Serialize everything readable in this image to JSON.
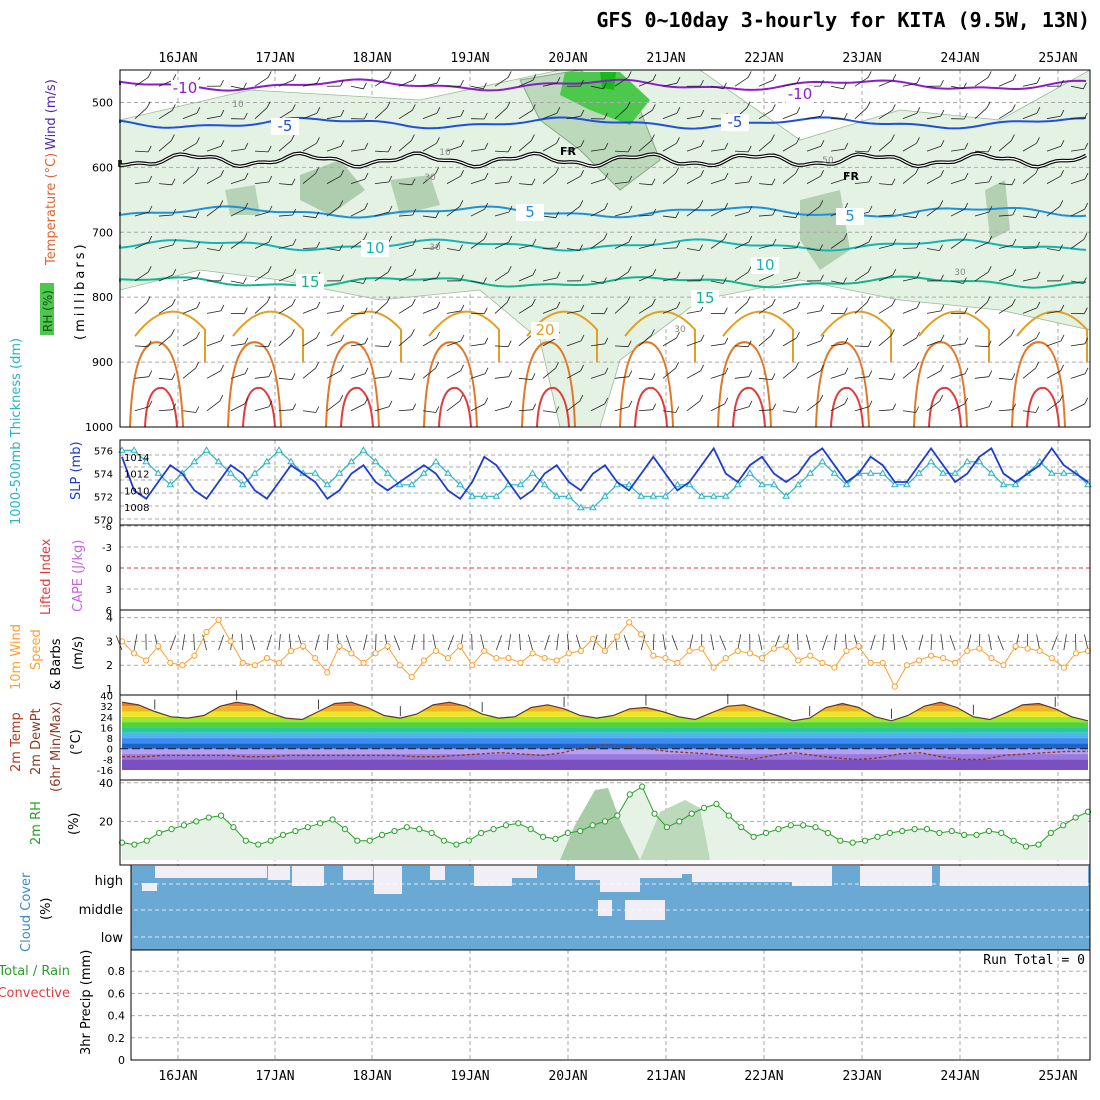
{
  "title": "GFS 0~10day 3-hourly for KITA (9.5W, 13N)",
  "dates": [
    "16JAN",
    "17JAN",
    "18JAN",
    "19JAN",
    "20JAN",
    "21JAN",
    "22JAN",
    "23JAN",
    "24JAN",
    "25JAN"
  ],
  "colors": {
    "grid": "#aaaaaa",
    "rh_fill": "#e4f2e4",
    "rh_mid": "#bcd9bc",
    "rh_dark": "#8ab48a",
    "rh_bright": "#4cc94c",
    "slp": "#1e3cd2",
    "thick": "#28b4c8",
    "wind": "#ffa030",
    "rh2m": "#28a028",
    "cloud": "#6aa9d4",
    "cloud_gap": "#f1eef5"
  },
  "panels": {
    "upper": {
      "ylabel_wind": "Wind (m/s)",
      "ylabel_temp": "Temperature (°C)",
      "ylabel_rh": "RH (%)",
      "ylabel_p": "(millibars)",
      "yticks": [
        "500",
        "600",
        "700",
        "800",
        "900",
        "1000"
      ],
      "freezing_label": "FR",
      "temp_labels": [
        {
          "text": "-10",
          "color": "#8a1ec8"
        },
        {
          "text": "-10",
          "color": "#8a1ec8"
        },
        {
          "text": "-5",
          "color": "#1e50dc"
        },
        {
          "text": "-5",
          "color": "#1e50dc"
        },
        {
          "text": "5",
          "color": "#1e90dc"
        },
        {
          "text": "5",
          "color": "#1e90dc"
        },
        {
          "text": "10",
          "color": "#14b4b4"
        },
        {
          "text": "10",
          "color": "#14b4b4"
        },
        {
          "text": "15",
          "color": "#14b48c"
        },
        {
          "text": "15",
          "color": "#14b48c"
        },
        {
          "text": "20",
          "color": "#e0a028"
        }
      ],
      "rh_labels": [
        "10",
        "10",
        "30",
        "30",
        "30",
        "50",
        "30"
      ]
    },
    "slp": {
      "ylabel_left": "1000-500mb Thickness (dm)",
      "ylabel_right": "SLP (mb)",
      "left_ticks": [
        "576",
        "574",
        "572",
        "570"
      ],
      "right_ticks": [
        "1014",
        "1012",
        "1010",
        "1008"
      ]
    },
    "cape": {
      "ylabel_left": "Lifted Index",
      "ylabel_right": "CAPE (J/kg)",
      "ticks": [
        "-6",
        "-3",
        "0",
        "3",
        "6"
      ]
    },
    "wind10": {
      "ylabel_left": "10m Wind",
      "ylabel_mid": "Speed",
      "ylabel_right": "& Barbs",
      "ylabel_unit": "(m/s)",
      "ticks": [
        "4",
        "3",
        "2",
        "1"
      ]
    },
    "temp2m": {
      "ylabel_l1": "2m Temp",
      "ylabel_l2": "2m DewPt",
      "ylabel_l3": "(6hr Min/Max)",
      "ylabel_unit": "(°C)",
      "ticks": [
        "40",
        "32",
        "24",
        "16",
        "8",
        "0",
        "-8",
        "-16"
      ]
    },
    "rh2m": {
      "ylabel_left": "2m RH",
      "ylabel_unit": "(%)",
      "ticks": [
        "40",
        "20"
      ]
    },
    "cloud": {
      "ylabel_left": "Cloud Cover",
      "ylabel_unit": "(%)",
      "levels": [
        "high",
        "middle",
        "low"
      ]
    },
    "precip": {
      "ylabel_left1": "Total / Rain",
      "ylabel_left2": "Convective",
      "ylabel_right": "3hr Precip (mm)",
      "ticks": [
        "0.8",
        "0.6",
        "0.4",
        "0.2",
        "0"
      ],
      "run_total": "Run Total = 0"
    }
  },
  "chart_data": [
    {
      "type": "line",
      "title": "GFS 0~10day 3-hourly for KITA (9.5W, 13N)",
      "series": [
        {
          "name": "SLP (mb)",
          "values": [
            1014,
            1010,
            1009,
            1011,
            1013,
            1012,
            1010,
            1009,
            1011,
            1013,
            1012,
            1010,
            1009,
            1011,
            1013,
            1012,
            1011,
            1009,
            1010,
            1012,
            1013,
            1011,
            1010,
            1011,
            1012,
            1013,
            1012,
            1010,
            1009,
            1011,
            1014,
            1013,
            1011,
            1009,
            1010,
            1012,
            1013,
            1011,
            1010,
            1012,
            1013,
            1011,
            1010,
            1012,
            1014,
            1012,
            1010,
            1011,
            1013,
            1015,
            1012,
            1011,
            1013,
            1014,
            1012,
            1011,
            1012,
            1014,
            1015,
            1013,
            1011,
            1012,
            1014,
            1013,
            1011,
            1011,
            1013,
            1015,
            1013,
            1011,
            1012,
            1014,
            1015,
            1012,
            1011,
            1012,
            1013,
            1015,
            1013,
            1012,
            1011
          ]
        },
        {
          "name": "1000-500mb Thickness (dm)",
          "values": [
            576,
            576,
            575,
            574,
            573,
            574,
            575,
            576,
            575,
            574,
            573,
            574,
            575,
            576,
            575,
            574,
            574,
            573,
            574,
            575,
            576,
            575,
            574,
            573,
            573,
            574,
            575,
            574,
            573,
            572,
            572,
            572,
            573,
            573,
            574,
            573,
            572,
            572,
            571,
            571,
            572,
            573,
            573,
            572,
            572,
            572,
            573,
            573,
            572,
            572,
            572,
            573,
            574,
            573,
            573,
            572,
            573,
            574,
            575,
            574,
            573,
            574,
            574,
            574,
            573,
            573,
            574,
            575,
            574,
            574,
            575,
            575,
            574,
            573,
            573,
            574,
            575,
            574,
            574,
            574,
            573
          ]
        }
      ],
      "ylim": [
        1006,
        1016
      ]
    },
    {
      "type": "line",
      "series": [
        {
          "name": "10m Wind Speed (m/s)",
          "values": [
            3,
            2.5,
            2.2,
            2.8,
            2.1,
            2.0,
            2.4,
            3.4,
            3.9,
            3.0,
            2.1,
            2.0,
            2.3,
            2.1,
            2.6,
            2.8,
            2.3,
            1.7,
            2.8,
            2.5,
            2.1,
            2.5,
            2.8,
            2.0,
            1.5,
            2.2,
            2.6,
            2.3,
            2.8,
            2.0,
            2.6,
            2.3,
            2.3,
            2.1,
            2.5,
            2.3,
            2.2,
            2.5,
            2.6,
            3.1,
            2.6,
            3.2,
            3.8,
            3.3,
            2.4,
            2.3,
            2.1,
            2.6,
            2.7,
            1.9,
            2.3,
            2.6,
            2.5,
            2.3,
            2.7,
            2.8,
            2.2,
            2.4,
            2.1,
            1.9,
            2.6,
            2.8,
            2.1,
            2.1,
            1.1,
            2.0,
            2.2,
            2.4,
            2.3,
            2.1,
            2.6,
            2.7,
            2.3,
            2.0,
            2.8,
            2.7,
            2.6,
            2.3,
            1.9,
            2.5,
            2.6
          ]
        }
      ],
      "ylim": [
        1,
        4
      ]
    },
    {
      "type": "area",
      "series": [
        {
          "name": "2m Temp max (°C)",
          "values": [
            35,
            33,
            28,
            24,
            23,
            25,
            32,
            35,
            33,
            27,
            23,
            22,
            28,
            34,
            35,
            31,
            25,
            23,
            26,
            33,
            35,
            32,
            26,
            23,
            24,
            31,
            33,
            30,
            25,
            23,
            25,
            30,
            31,
            28,
            24,
            22,
            27,
            32,
            33,
            29,
            25,
            21,
            23,
            31,
            34,
            31,
            24,
            21,
            25,
            32,
            35,
            31,
            24,
            22,
            27,
            33,
            34,
            30,
            24,
            21
          ]
        },
        {
          "name": "2m DewPt (°C)",
          "values": [
            -6,
            -6,
            -5,
            -5,
            -5,
            -5,
            -6,
            -6,
            -5,
            -5,
            -5,
            -5,
            -5,
            -5,
            -6,
            -6,
            -5,
            -4,
            -3,
            -4,
            -5,
            -3,
            1,
            3,
            2,
            0,
            -2,
            -3,
            -4,
            -6,
            -8,
            -5,
            -3,
            -5,
            -7,
            -8,
            -7,
            -4,
            -3,
            -6,
            -8,
            -8,
            -5,
            -4,
            -3,
            -2,
            -2
          ]
        }
      ],
      "ylim": [
        -16,
        40
      ]
    },
    {
      "type": "area",
      "series": [
        {
          "name": "2m RH (%)",
          "values": [
            9,
            8,
            10,
            14,
            16,
            18,
            20,
            22,
            23,
            17,
            10,
            8,
            10,
            13,
            15,
            17,
            19,
            21,
            16,
            10,
            10,
            13,
            15,
            17,
            16,
            14,
            10,
            8,
            10,
            14,
            16,
            18,
            19,
            16,
            12,
            11,
            14,
            15,
            18,
            20,
            23,
            34,
            38,
            24,
            17,
            20,
            24,
            27,
            29,
            23,
            17,
            12,
            14,
            16,
            18,
            18,
            17,
            14,
            10,
            9,
            10,
            12,
            14,
            15,
            16,
            16,
            14,
            15,
            13,
            13,
            15,
            14,
            10,
            7,
            8,
            14,
            18,
            22,
            25
          ]
        }
      ],
      "ylim": [
        0,
        40
      ]
    },
    {
      "type": "bar",
      "series": [
        {
          "name": "Cloud Cover high (%)",
          "values": []
        },
        {
          "name": "Cloud Cover middle (%)",
          "values": []
        },
        {
          "name": "Cloud Cover low (%)",
          "values": []
        }
      ]
    },
    {
      "type": "bar",
      "series": [
        {
          "name": "3hr Precip (mm)",
          "values": [
            0
          ]
        }
      ],
      "ylim": [
        0,
        0.9
      ]
    }
  ]
}
